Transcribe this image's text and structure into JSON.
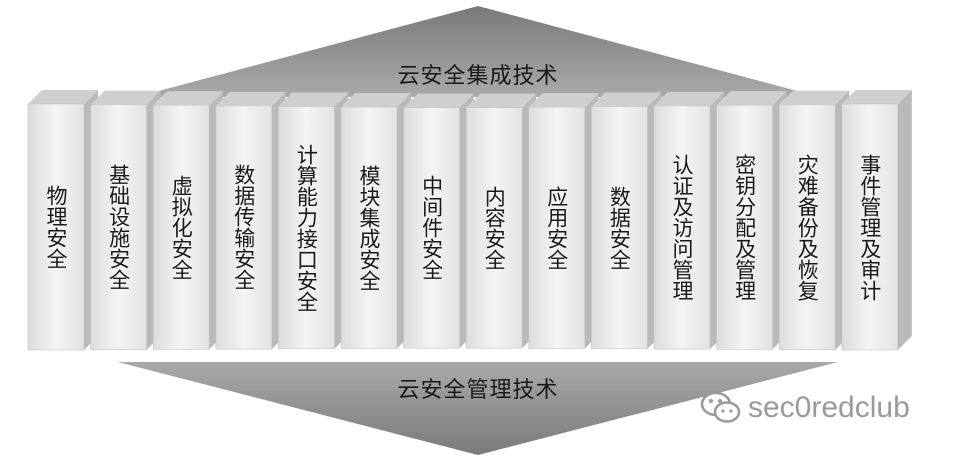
{
  "top_banner": {
    "label": "云安全集成技术"
  },
  "bottom_banner": {
    "label": "云安全管理技术"
  },
  "blocks": [
    {
      "label": "物理安全"
    },
    {
      "label": "基础设施安全"
    },
    {
      "label": "虚拟化安全"
    },
    {
      "label": "数据传输安全"
    },
    {
      "label": "计算能力接口安全"
    },
    {
      "label": "模块集成安全"
    },
    {
      "label": "中间件安全"
    },
    {
      "label": "内容安全"
    },
    {
      "label": "应用安全"
    },
    {
      "label": "数据安全"
    },
    {
      "label": "认证及访问管理"
    },
    {
      "label": "密钥分配及管理"
    },
    {
      "label": "灾难备份及恢复"
    },
    {
      "label": "事件管理及审计"
    }
  ],
  "watermark": {
    "text": "sec0redclub",
    "icon": "wechat-icon"
  },
  "colors": {
    "banner": "#8c8c8c",
    "block_front": "#ececec",
    "block_top": "#cfcfcf",
    "block_side": "#b9b9b9"
  }
}
